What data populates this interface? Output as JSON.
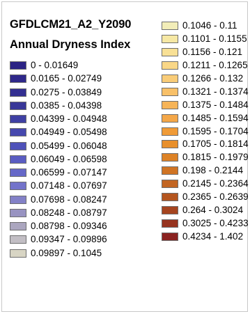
{
  "legend": {
    "layer_title": "GFDLCM21_A2_Y2090",
    "field_title": "Annual Dryness Index",
    "left_items": [
      {
        "label": "0 - 0.01649",
        "color": "#2b2384"
      },
      {
        "label": "0.0165 - 0.02749",
        "color": "#2f288a"
      },
      {
        "label": "0.0275 - 0.03849",
        "color": "#332f91"
      },
      {
        "label": "0.0385 - 0.04398",
        "color": "#383798"
      },
      {
        "label": "0.04399 - 0.04948",
        "color": "#3f40a3"
      },
      {
        "label": "0.04949 - 0.05498",
        "color": "#4648ae"
      },
      {
        "label": "0.05499 - 0.06048",
        "color": "#4f52b9"
      },
      {
        "label": "0.06049 - 0.06598",
        "color": "#5a5dc2"
      },
      {
        "label": "0.06599 - 0.07147",
        "color": "#6668c8"
      },
      {
        "label": "0.07148 - 0.07697",
        "color": "#7373ca"
      },
      {
        "label": "0.07698 - 0.08247",
        "color": "#8381c7"
      },
      {
        "label": "0.08248 - 0.08797",
        "color": "#9893c1"
      },
      {
        "label": "0.08798 - 0.09346",
        "color": "#aba6bf"
      },
      {
        "label": "0.09347 - 0.09896",
        "color": "#c2bec4"
      },
      {
        "label": "0.09897 - 0.1045",
        "color": "#d8d5c4"
      }
    ],
    "right_items": [
      {
        "label": "0.1046 - 0.11",
        "color": "#f2edb8"
      },
      {
        "label": "0.1101 - 0.1155",
        "color": "#f6e8a4"
      },
      {
        "label": "0.1156 - 0.121",
        "color": "#f8e095"
      },
      {
        "label": "0.1211 - 0.1265",
        "color": "#f9d787"
      },
      {
        "label": "0.1266 - 0.132",
        "color": "#f9cc78"
      },
      {
        "label": "0.1321 - 0.1374",
        "color": "#f8c068"
      },
      {
        "label": "0.1375 - 0.1484",
        "color": "#f6b458"
      },
      {
        "label": "0.1485 - 0.1594",
        "color": "#f4a748"
      },
      {
        "label": "0.1595 - 0.1704",
        "color": "#f09b37"
      },
      {
        "label": "0.1705 - 0.1814",
        "color": "#e88f2b"
      },
      {
        "label": "0.1815 - 0.1979",
        "color": "#dd8226"
      },
      {
        "label": "0.198 - 0.2144",
        "color": "#d07424"
      },
      {
        "label": "0.2145 - 0.2364",
        "color": "#c26522"
      },
      {
        "label": "0.2365 - 0.2639",
        "color": "#b4551f"
      },
      {
        "label": "0.264 - 0.3024",
        "color": "#a5441f"
      },
      {
        "label": "0.3025 - 0.4233",
        "color": "#97331f"
      },
      {
        "label": "0.4234 - 1.402",
        "color": "#8a2220"
      }
    ]
  }
}
